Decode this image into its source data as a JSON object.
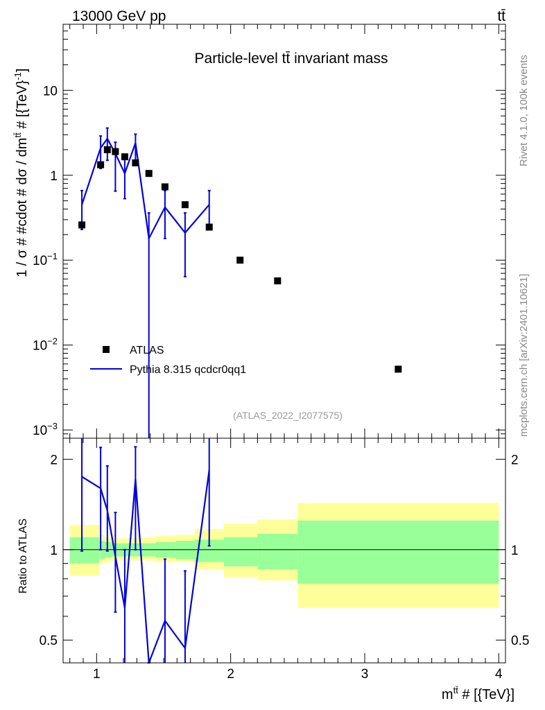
{
  "header": {
    "left": "13000 GeV pp",
    "right": "tt̄"
  },
  "side_labels": {
    "rivet": "Rivet 4.1.0,  100k events",
    "mcplots": "mcplots.cern.ch [arXiv:2401.10621]"
  },
  "chart_data": {
    "type": "scatter",
    "title": "Particle-level tt̄ invariant mass",
    "analysis_id": "(ATLAS_2022_I2077575)",
    "xlabel": "m^{tt̄} # [{TeV}]",
    "xlabel_base": "m",
    "xlabel_sup": "tt̄",
    "xlabel_rest": " # [{TeV}]",
    "ylabel": "1 / σ # #cdot # dσ / dm^{tt̄} # [{TeV}^{-1}]",
    "ylabel_parts": [
      "1 / σ # #cdot # dσ / dm",
      "tt̄",
      " # [{TeV}",
      "-1",
      "]"
    ],
    "ratio_ylabel": "Ratio to ATLAS",
    "xlim": [
      0.75,
      4.05
    ],
    "ylim": [
      0.0008,
      60
    ],
    "yscale": "log",
    "x_ticks": [
      1,
      2,
      3,
      4
    ],
    "x_tick_labels": [
      "1",
      "2",
      "3",
      "4"
    ],
    "y_ticks": [
      {
        "value": 10,
        "base": "10",
        "exp": ""
      },
      {
        "value": 1,
        "base": "1",
        "exp": ""
      },
      {
        "value": 0.1,
        "base": "10",
        "exp": "−1"
      },
      {
        "value": 0.01,
        "base": "10",
        "exp": "−2"
      },
      {
        "value": 0.001,
        "base": "10",
        "exp": "−3"
      }
    ],
    "ratio_ylim": [
      0.42,
      2.35
    ],
    "ratio_ticks": [
      0.5,
      1,
      2
    ],
    "ratio_tick_labels": [
      "0.5",
      "1",
      "2"
    ],
    "legend": [
      {
        "label": "ATLAS",
        "marker": "square",
        "color": "#000000"
      },
      {
        "label": "Pythia 8.315 qcdcr0qq1",
        "marker": "line",
        "color": "#0000dd"
      }
    ],
    "bins": [
      {
        "lo": 0.8,
        "hi": 1.02
      },
      {
        "lo": 1.02,
        "hi": 1.06
      },
      {
        "lo": 1.06,
        "hi": 1.11
      },
      {
        "lo": 1.11,
        "hi": 1.17
      },
      {
        "lo": 1.17,
        "hi": 1.26
      },
      {
        "lo": 1.26,
        "hi": 1.34
      },
      {
        "lo": 1.34,
        "hi": 1.44
      },
      {
        "lo": 1.44,
        "hi": 1.59
      },
      {
        "lo": 1.59,
        "hi": 1.73
      },
      {
        "lo": 1.73,
        "hi": 1.95
      },
      {
        "lo": 1.95,
        "hi": 2.2
      },
      {
        "lo": 2.2,
        "hi": 2.5
      },
      {
        "lo": 2.5,
        "hi": 4.0
      }
    ],
    "series": [
      {
        "name": "ATLAS",
        "color": "#000000",
        "x": [
          0.89,
          1.03,
          1.08,
          1.14,
          1.21,
          1.29,
          1.39,
          1.51,
          1.66,
          1.84,
          2.07,
          2.35,
          3.25
        ],
        "y": [
          0.26,
          1.33,
          2.0,
          1.9,
          1.65,
          1.4,
          1.05,
          0.73,
          0.45,
          0.245,
          0.1,
          0.057,
          0.0052
        ]
      },
      {
        "name": "Pythia 8.315 qcdcr0qq1",
        "color": "#0000dd",
        "x": [
          0.89,
          1.03,
          1.08,
          1.14,
          1.21,
          1.29,
          1.39,
          1.51,
          1.66,
          1.84
        ],
        "y": [
          0.45,
          2.1,
          2.7,
          1.8,
          1.05,
          2.4,
          0.18,
          0.42,
          0.21,
          0.45
        ],
        "y_err_lo": [
          0.23,
          1.2,
          1.5,
          0.65,
          0.53,
          1.45,
          0.0001,
          0.18,
          0.064,
          0.24
        ],
        "y_err_hi": [
          0.66,
          2.9,
          3.6,
          2.45,
          1.6,
          3.05,
          0.36,
          0.66,
          0.36,
          0.66
        ]
      }
    ],
    "ratio": {
      "x": [
        0.89,
        1.03,
        1.08,
        1.14,
        1.21,
        1.29,
        1.39,
        1.51,
        1.66,
        1.84
      ],
      "y": [
        1.75,
        1.6,
        1.35,
        0.95,
        0.64,
        1.72,
        0.17,
        0.58,
        0.47,
        1.84
      ],
      "y_err_lo": [
        0.99,
        1.0,
        0.99,
        0.62,
        0.32,
        1.0,
        0.02,
        0.25,
        0.14,
        1.03
      ],
      "y_err_hi": [
        2.4,
        2.19,
        1.9,
        1.33,
        1.0,
        2.2,
        0.34,
        0.93,
        0.85,
        2.4
      ],
      "band_inner_lo": [
        0.9,
        0.93,
        0.94,
        0.95,
        0.95,
        0.95,
        0.95,
        0.94,
        0.93,
        0.91,
        0.88,
        0.86,
        0.77
      ],
      "band_inner_hi": [
        1.1,
        1.07,
        1.06,
        1.05,
        1.05,
        1.05,
        1.05,
        1.06,
        1.07,
        1.08,
        1.1,
        1.13,
        1.25
      ],
      "band_outer_lo": [
        0.82,
        0.9,
        0.91,
        0.92,
        0.92,
        0.92,
        0.92,
        0.91,
        0.91,
        0.86,
        0.81,
        0.79,
        0.64
      ],
      "band_outer_hi": [
        1.21,
        1.12,
        1.1,
        1.09,
        1.09,
        1.09,
        1.1,
        1.11,
        1.12,
        1.17,
        1.22,
        1.26,
        1.43
      ]
    }
  }
}
